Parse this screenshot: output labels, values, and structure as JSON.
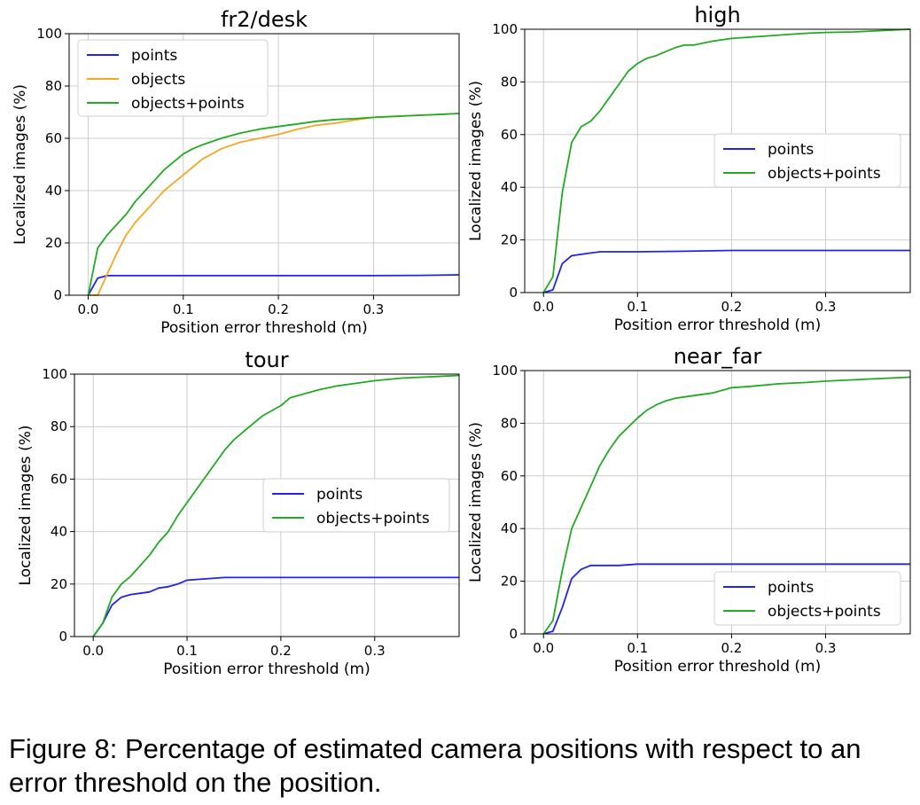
{
  "caption": "Figure 8: Percentage of estimated camera positions with respect to an error threshold on the position.",
  "colors": {
    "points": "#2222ee",
    "objects": "#f5a623",
    "objects_points": "#22aa22"
  },
  "chart_data": [
    {
      "type": "line",
      "title": "fr2/desk",
      "xlabel": "Position error threshold (m)",
      "ylabel": "Localized images (%)",
      "xlim": [
        -0.02,
        0.39
      ],
      "ylim": [
        0,
        100
      ],
      "xticks": [
        0.0,
        0.1,
        0.2,
        0.3
      ],
      "xtick_labels": [
        "0.0",
        "0.1",
        "0.2",
        "0.3"
      ],
      "yticks": [
        0,
        20,
        40,
        60,
        80,
        100
      ],
      "ytick_labels": [
        "0",
        "20",
        "40",
        "60",
        "80",
        "100"
      ],
      "grid": true,
      "legend": "top-left",
      "series": [
        {
          "name": "points",
          "color": "#2222ee",
          "x": [
            0,
            0.01,
            0.02,
            0.05,
            0.1,
            0.2,
            0.3,
            0.35,
            0.39
          ],
          "y": [
            0,
            6.5,
            7.5,
            7.5,
            7.5,
            7.5,
            7.5,
            7.6,
            7.8
          ]
        },
        {
          "name": "objects",
          "color": "#f5a623",
          "x": [
            0,
            0.01,
            0.02,
            0.03,
            0.04,
            0.05,
            0.06,
            0.07,
            0.08,
            0.09,
            0.1,
            0.11,
            0.12,
            0.14,
            0.16,
            0.18,
            0.2,
            0.22,
            0.24,
            0.26,
            0.28,
            0.3,
            0.33,
            0.36,
            0.39
          ],
          "y": [
            0,
            0,
            8,
            16,
            23,
            28,
            32,
            36,
            40,
            43,
            46,
            49,
            52,
            56,
            58.5,
            60,
            61.5,
            63.5,
            65,
            65.8,
            67,
            68,
            68.5,
            69,
            69.5
          ]
        },
        {
          "name": "objects+points",
          "color": "#22aa22",
          "x": [
            0,
            0.01,
            0.02,
            0.03,
            0.04,
            0.05,
            0.06,
            0.07,
            0.08,
            0.09,
            0.1,
            0.11,
            0.12,
            0.14,
            0.16,
            0.18,
            0.2,
            0.22,
            0.24,
            0.26,
            0.28,
            0.3,
            0.33,
            0.36,
            0.39
          ],
          "y": [
            0,
            18,
            23,
            27,
            31,
            36,
            40,
            44,
            48,
            51,
            54,
            56,
            57.5,
            60,
            62,
            63.5,
            64.5,
            65.5,
            66.5,
            67.2,
            67.5,
            68,
            68.5,
            69,
            69.5
          ]
        }
      ]
    },
    {
      "type": "line",
      "title": "high",
      "xlabel": "Position error threshold (m)",
      "ylabel": "Localized images (%)",
      "xlim": [
        -0.02,
        0.39
      ],
      "ylim": [
        0,
        100
      ],
      "xticks": [
        0.0,
        0.1,
        0.2,
        0.3
      ],
      "xtick_labels": [
        "0.0",
        "0.1",
        "0.2",
        "0.3"
      ],
      "yticks": [
        0,
        20,
        40,
        60,
        80,
        100
      ],
      "ytick_labels": [
        "0",
        "20",
        "40",
        "60",
        "80",
        "100"
      ],
      "grid": true,
      "legend": "center-right",
      "series": [
        {
          "name": "points",
          "color": "#2222ee",
          "x": [
            0,
            0.01,
            0.02,
            0.03,
            0.04,
            0.05,
            0.06,
            0.08,
            0.1,
            0.15,
            0.2,
            0.3,
            0.39
          ],
          "y": [
            0,
            1,
            11,
            14,
            14.5,
            15,
            15.5,
            15.5,
            15.5,
            15.7,
            16,
            16,
            16
          ]
        },
        {
          "name": "objects+points",
          "color": "#22aa22",
          "x": [
            0,
            0.01,
            0.02,
            0.03,
            0.04,
            0.05,
            0.06,
            0.07,
            0.08,
            0.09,
            0.1,
            0.11,
            0.12,
            0.13,
            0.14,
            0.15,
            0.16,
            0.18,
            0.2,
            0.22,
            0.24,
            0.26,
            0.28,
            0.3,
            0.33,
            0.36,
            0.39
          ],
          "y": [
            0,
            6,
            38,
            57,
            63,
            65,
            69,
            74,
            79,
            84,
            87,
            89,
            90,
            91.5,
            93,
            94,
            94,
            95.5,
            96.5,
            97,
            97.5,
            98,
            98.5,
            98.8,
            99,
            99.5,
            100
          ]
        }
      ]
    },
    {
      "type": "line",
      "title": "tour",
      "xlabel": "Position error threshold (m)",
      "ylabel": "Localized images (%)",
      "xlim": [
        -0.02,
        0.39
      ],
      "ylim": [
        0,
        100
      ],
      "xticks": [
        0.0,
        0.1,
        0.2,
        0.3
      ],
      "xtick_labels": [
        "0.0",
        "0.1",
        "0.2",
        "0.3"
      ],
      "yticks": [
        0,
        20,
        40,
        60,
        80,
        100
      ],
      "ytick_labels": [
        "0",
        "20",
        "40",
        "60",
        "80",
        "100"
      ],
      "grid": true,
      "legend": "center-right",
      "series": [
        {
          "name": "points",
          "color": "#2222ee",
          "x": [
            0,
            0.01,
            0.02,
            0.03,
            0.04,
            0.05,
            0.06,
            0.07,
            0.08,
            0.09,
            0.1,
            0.12,
            0.14,
            0.2,
            0.3,
            0.39
          ],
          "y": [
            0,
            5,
            12,
            15,
            16,
            16.5,
            17,
            18.5,
            19,
            20,
            21.5,
            22,
            22.5,
            22.5,
            22.5,
            22.5
          ]
        },
        {
          "name": "objects+points",
          "color": "#22aa22",
          "x": [
            0,
            0.01,
            0.02,
            0.03,
            0.04,
            0.05,
            0.06,
            0.07,
            0.08,
            0.09,
            0.1,
            0.11,
            0.12,
            0.13,
            0.14,
            0.15,
            0.16,
            0.18,
            0.2,
            0.21,
            0.22,
            0.24,
            0.26,
            0.28,
            0.3,
            0.33,
            0.36,
            0.39
          ],
          "y": [
            0,
            5,
            15,
            20,
            23,
            27,
            31,
            36,
            40,
            46,
            51,
            56,
            61,
            66,
            71,
            75,
            78,
            84,
            88,
            91,
            92,
            94,
            95.5,
            96.5,
            97.5,
            98.5,
            99,
            99.5
          ]
        }
      ]
    },
    {
      "type": "line",
      "title": "near_far",
      "xlabel": "Position error threshold (m)",
      "ylabel": "Localized images (%)",
      "xlim": [
        -0.02,
        0.39
      ],
      "ylim": [
        0,
        100
      ],
      "xticks": [
        0.0,
        0.1,
        0.2,
        0.3
      ],
      "xtick_labels": [
        "0.0",
        "0.1",
        "0.2",
        "0.3"
      ],
      "yticks": [
        0,
        20,
        40,
        60,
        80,
        100
      ],
      "ytick_labels": [
        "0",
        "20",
        "40",
        "60",
        "80",
        "100"
      ],
      "grid": true,
      "legend": "lower-right",
      "series": [
        {
          "name": "points",
          "color": "#2222ee",
          "x": [
            0,
            0.01,
            0.02,
            0.03,
            0.04,
            0.05,
            0.06,
            0.08,
            0.1,
            0.15,
            0.2,
            0.3,
            0.39
          ],
          "y": [
            0,
            1,
            10,
            21,
            24.5,
            26,
            26,
            26,
            26.5,
            26.5,
            26.5,
            26.5,
            26.5
          ]
        },
        {
          "name": "objects+points",
          "color": "#22aa22",
          "x": [
            0,
            0.01,
            0.02,
            0.03,
            0.04,
            0.05,
            0.06,
            0.07,
            0.08,
            0.09,
            0.1,
            0.11,
            0.12,
            0.13,
            0.14,
            0.16,
            0.18,
            0.2,
            0.22,
            0.25,
            0.28,
            0.3,
            0.33,
            0.36,
            0.39
          ],
          "y": [
            0,
            5,
            24,
            40,
            48,
            56,
            64,
            70,
            75,
            78.5,
            82,
            85,
            87,
            88.5,
            89.5,
            90.5,
            91.5,
            93.5,
            94,
            95,
            95.5,
            96,
            96.5,
            97,
            97.5
          ]
        }
      ]
    }
  ]
}
